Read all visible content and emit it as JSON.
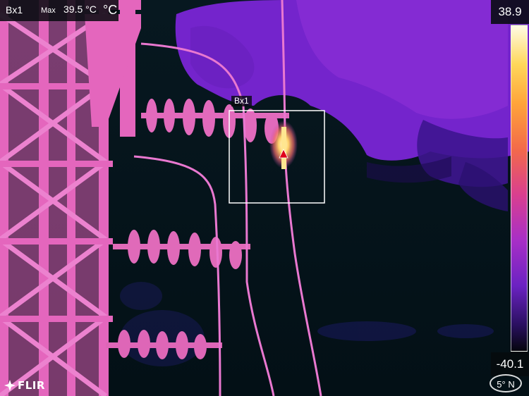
{
  "measurement": {
    "box_name": "Bx1",
    "stat_label": "Max",
    "stat_value": "39.5 °C",
    "unit": "°C",
    "box_overlay_label": "Bx1"
  },
  "scale": {
    "max": "38.9",
    "min": "-40.1",
    "palette": "iron"
  },
  "brand": {
    "logo_text": "FLIR"
  },
  "compass": {
    "heading": "5° N"
  },
  "colors": {
    "background": "#03121a",
    "cloud": "#7a24cf",
    "structure": "#e060b8",
    "hotspot": "#fff2a0",
    "marker": "#e0001b"
  }
}
